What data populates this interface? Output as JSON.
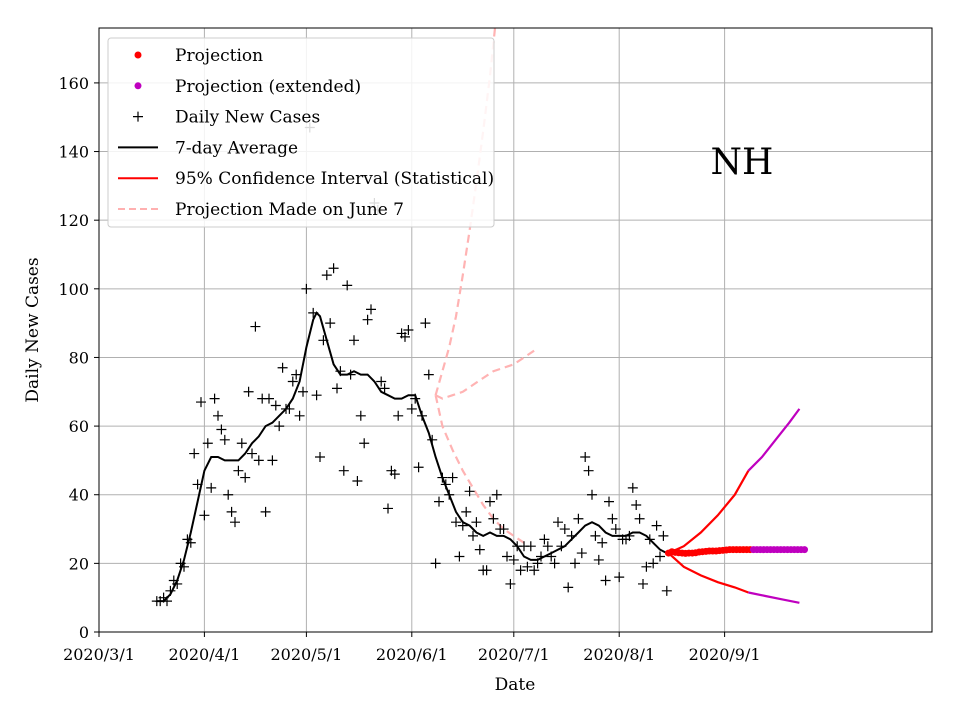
{
  "chart_data": {
    "type": "scatter",
    "ylabel": "Daily New Cases",
    "xlabel": "Date",
    "annotation": "NH",
    "ylim": [
      0,
      176
    ],
    "xlim_days": [
      0,
      245
    ],
    "x_ticks": [
      {
        "day": 0,
        "label": "2020/3/1"
      },
      {
        "day": 31,
        "label": "2020/4/1"
      },
      {
        "day": 61,
        "label": "2020/5/1"
      },
      {
        "day": 92,
        "label": "2020/6/1"
      },
      {
        "day": 122,
        "label": "2020/7/1"
      },
      {
        "day": 153,
        "label": "2020/8/1"
      },
      {
        "day": 184,
        "label": "2020/9/1"
      }
    ],
    "y_ticks": [
      0,
      20,
      40,
      60,
      80,
      100,
      120,
      140,
      160
    ],
    "grid": true,
    "legend_position": "top-left",
    "legend": [
      {
        "label": "Projection",
        "style": "dot",
        "color": "#ff0000"
      },
      {
        "label": "Projection (extended)",
        "style": "dot",
        "color": "#bf00bf"
      },
      {
        "label": "Daily New Cases",
        "style": "plus",
        "color": "#000000"
      },
      {
        "label": "7-day Average",
        "style": "line",
        "color": "#000000"
      },
      {
        "label": "95% Confidence Interval (Statistical)",
        "style": "line",
        "color": "#ff0000"
      },
      {
        "label": "Projection Made on June 7",
        "style": "dashed",
        "color": "#ffb0b0"
      }
    ],
    "daily_new_cases": [
      [
        17,
        9
      ],
      [
        18,
        9
      ],
      [
        19,
        10
      ],
      [
        20,
        9
      ],
      [
        21,
        12
      ],
      [
        22,
        15
      ],
      [
        23,
        14
      ],
      [
        24,
        20
      ],
      [
        25,
        19
      ],
      [
        26,
        27
      ],
      [
        27,
        26
      ],
      [
        28,
        52
      ],
      [
        29,
        43
      ],
      [
        30,
        67
      ],
      [
        31,
        34
      ],
      [
        32,
        55
      ],
      [
        33,
        42
      ],
      [
        34,
        68
      ],
      [
        35,
        63
      ],
      [
        36,
        59
      ],
      [
        37,
        56
      ],
      [
        38,
        40
      ],
      [
        39,
        35
      ],
      [
        40,
        32
      ],
      [
        41,
        47
      ],
      [
        42,
        55
      ],
      [
        43,
        45
      ],
      [
        44,
        70
      ],
      [
        45,
        52
      ],
      [
        46,
        89
      ],
      [
        47,
        50
      ],
      [
        48,
        68
      ],
      [
        49,
        35
      ],
      [
        50,
        68
      ],
      [
        51,
        50
      ],
      [
        52,
        66
      ],
      [
        53,
        60
      ],
      [
        54,
        77
      ],
      [
        55,
        65
      ],
      [
        56,
        65
      ],
      [
        57,
        73
      ],
      [
        58,
        75
      ],
      [
        59,
        63
      ],
      [
        60,
        70
      ],
      [
        61,
        100
      ],
      [
        62,
        147
      ],
      [
        63,
        93
      ],
      [
        64,
        69
      ],
      [
        65,
        51
      ],
      [
        66,
        85
      ],
      [
        67,
        104
      ],
      [
        68,
        90
      ],
      [
        69,
        106
      ],
      [
        70,
        71
      ],
      [
        71,
        76
      ],
      [
        72,
        47
      ],
      [
        73,
        101
      ],
      [
        74,
        75
      ],
      [
        75,
        85
      ],
      [
        76,
        44
      ],
      [
        77,
        63
      ],
      [
        78,
        55
      ],
      [
        79,
        91
      ],
      [
        80,
        94
      ],
      [
        81,
        125
      ],
      [
        82,
        123
      ],
      [
        83,
        73
      ],
      [
        84,
        71
      ],
      [
        85,
        36
      ],
      [
        86,
        47
      ],
      [
        87,
        46
      ],
      [
        88,
        63
      ],
      [
        89,
        87
      ],
      [
        90,
        86
      ],
      [
        91,
        88
      ],
      [
        92,
        65
      ],
      [
        93,
        68
      ],
      [
        94,
        48
      ],
      [
        95,
        63
      ],
      [
        96,
        90
      ],
      [
        97,
        75
      ],
      [
        98,
        56
      ],
      [
        99,
        20
      ],
      [
        100,
        38
      ],
      [
        101,
        45
      ],
      [
        102,
        43
      ],
      [
        103,
        40
      ],
      [
        104,
        45
      ],
      [
        105,
        32
      ],
      [
        106,
        22
      ],
      [
        107,
        31
      ],
      [
        108,
        35
      ],
      [
        109,
        41
      ],
      [
        110,
        28
      ],
      [
        111,
        32
      ],
      [
        112,
        24
      ],
      [
        113,
        18
      ],
      [
        114,
        18
      ],
      [
        115,
        38
      ],
      [
        116,
        33
      ],
      [
        117,
        40
      ],
      [
        118,
        30
      ],
      [
        119,
        30
      ],
      [
        120,
        22
      ],
      [
        121,
        14
      ],
      [
        122,
        21
      ],
      [
        123,
        25
      ],
      [
        124,
        18
      ],
      [
        125,
        25
      ],
      [
        126,
        19
      ],
      [
        127,
        25
      ],
      [
        128,
        18
      ],
      [
        129,
        20
      ],
      [
        130,
        22
      ],
      [
        131,
        27
      ],
      [
        132,
        25
      ],
      [
        133,
        22
      ],
      [
        134,
        20
      ],
      [
        135,
        32
      ],
      [
        136,
        25
      ],
      [
        137,
        30
      ],
      [
        138,
        13
      ],
      [
        139,
        28
      ],
      [
        140,
        20
      ],
      [
        141,
        33
      ],
      [
        142,
        23
      ],
      [
        143,
        51
      ],
      [
        144,
        47
      ],
      [
        145,
        40
      ],
      [
        146,
        28
      ],
      [
        147,
        21
      ],
      [
        148,
        26
      ],
      [
        149,
        15
      ],
      [
        150,
        38
      ],
      [
        151,
        33
      ],
      [
        152,
        30
      ],
      [
        153,
        16
      ],
      [
        154,
        27
      ],
      [
        155,
        27
      ],
      [
        156,
        28
      ],
      [
        157,
        42
      ],
      [
        158,
        37
      ],
      [
        159,
        33
      ],
      [
        160,
        14
      ],
      [
        161,
        19
      ],
      [
        162,
        27
      ],
      [
        163,
        20
      ],
      [
        164,
        31
      ],
      [
        165,
        22
      ],
      [
        166,
        28
      ],
      [
        167,
        12
      ]
    ],
    "seven_day_average": [
      [
        17,
        9
      ],
      [
        19,
        9
      ],
      [
        21,
        11
      ],
      [
        23,
        15
      ],
      [
        25,
        21
      ],
      [
        27,
        29
      ],
      [
        29,
        38
      ],
      [
        31,
        47
      ],
      [
        33,
        51
      ],
      [
        35,
        51
      ],
      [
        37,
        50
      ],
      [
        39,
        50
      ],
      [
        41,
        50
      ],
      [
        43,
        52
      ],
      [
        45,
        55
      ],
      [
        47,
        57
      ],
      [
        49,
        60
      ],
      [
        51,
        61
      ],
      [
        53,
        63
      ],
      [
        55,
        65
      ],
      [
        57,
        68
      ],
      [
        59,
        73
      ],
      [
        61,
        83
      ],
      [
        63,
        91
      ],
      [
        64,
        93
      ],
      [
        65,
        92
      ],
      [
        67,
        85
      ],
      [
        69,
        78
      ],
      [
        71,
        75
      ],
      [
        73,
        75
      ],
      [
        75,
        76
      ],
      [
        77,
        75
      ],
      [
        79,
        75
      ],
      [
        81,
        73
      ],
      [
        83,
        70
      ],
      [
        85,
        69
      ],
      [
        87,
        68
      ],
      [
        89,
        68
      ],
      [
        91,
        69
      ],
      [
        92,
        69
      ],
      [
        93,
        69
      ],
      [
        95,
        63
      ],
      [
        97,
        58
      ],
      [
        99,
        51
      ],
      [
        101,
        45
      ],
      [
        103,
        40
      ],
      [
        105,
        35
      ],
      [
        107,
        32
      ],
      [
        109,
        31
      ],
      [
        111,
        29
      ],
      [
        113,
        28
      ],
      [
        115,
        29
      ],
      [
        117,
        28
      ],
      [
        119,
        28
      ],
      [
        121,
        27
      ],
      [
        123,
        25
      ],
      [
        125,
        22
      ],
      [
        127,
        21
      ],
      [
        129,
        21
      ],
      [
        131,
        22
      ],
      [
        133,
        23
      ],
      [
        135,
        24
      ],
      [
        137,
        25
      ],
      [
        139,
        27
      ],
      [
        141,
        29
      ],
      [
        143,
        31
      ],
      [
        145,
        32
      ],
      [
        147,
        31
      ],
      [
        149,
        29
      ],
      [
        151,
        28
      ],
      [
        153,
        28
      ],
      [
        155,
        28
      ],
      [
        157,
        29
      ],
      [
        159,
        29
      ],
      [
        161,
        28
      ],
      [
        163,
        26
      ],
      [
        165,
        24
      ],
      [
        167,
        23
      ]
    ],
    "projection": [
      [
        167.5,
        23
      ],
      [
        168.5,
        23.4
      ],
      [
        169.5,
        23.2
      ],
      [
        170.5,
        23.1
      ],
      [
        171.5,
        23
      ],
      [
        172.5,
        22.9
      ],
      [
        173.5,
        23
      ],
      [
        174.5,
        23
      ],
      [
        175.5,
        23.1
      ],
      [
        176.5,
        23.3
      ],
      [
        177.5,
        23.4
      ],
      [
        178.5,
        23.5
      ],
      [
        179.5,
        23.6
      ],
      [
        180.5,
        23.6
      ],
      [
        181.5,
        23.6
      ],
      [
        182.5,
        23.7
      ],
      [
        183.5,
        23.8
      ],
      [
        184.5,
        23.9
      ],
      [
        185.5,
        24
      ],
      [
        186.5,
        24
      ],
      [
        187.5,
        24
      ],
      [
        188.5,
        24
      ],
      [
        189.5,
        24
      ],
      [
        190.5,
        24
      ],
      [
        191.5,
        24
      ]
    ],
    "projection_extended": [
      [
        192.5,
        24
      ],
      [
        193.5,
        24
      ],
      [
        194.5,
        24
      ],
      [
        195.5,
        24
      ],
      [
        196.5,
        24
      ],
      [
        197.5,
        24
      ],
      [
        198.5,
        24
      ],
      [
        199.5,
        24
      ],
      [
        200.5,
        24
      ],
      [
        201.5,
        24
      ],
      [
        202.5,
        24
      ],
      [
        203.5,
        24
      ],
      [
        204.5,
        24
      ],
      [
        205.5,
        24
      ],
      [
        206.5,
        24
      ],
      [
        207.5,
        24
      ]
    ],
    "ci_upper": [
      [
        167.5,
        23
      ],
      [
        172,
        25
      ],
      [
        177,
        29
      ],
      [
        182,
        34
      ],
      [
        187,
        40
      ],
      [
        191,
        47
      ]
    ],
    "ci_upper_extended": [
      [
        191,
        47
      ],
      [
        195,
        51
      ],
      [
        199,
        56
      ],
      [
        203,
        61
      ],
      [
        206,
        65
      ]
    ],
    "ci_lower": [
      [
        167.5,
        23
      ],
      [
        172,
        19
      ],
      [
        177,
        16.5
      ],
      [
        182,
        14.5
      ],
      [
        187,
        13
      ],
      [
        191,
        11.5
      ]
    ],
    "ci_lower_extended": [
      [
        191,
        11.5
      ],
      [
        196,
        10.5
      ],
      [
        201,
        9.5
      ],
      [
        206,
        8.5
      ]
    ],
    "june7_upper_ci": [
      [
        99,
        69
      ],
      [
        101,
        76
      ],
      [
        103,
        83
      ],
      [
        105,
        92
      ],
      [
        107,
        104
      ],
      [
        109,
        117
      ],
      [
        111,
        131
      ],
      [
        113,
        146
      ],
      [
        115,
        162
      ],
      [
        117,
        181
      ]
    ],
    "june7_mid_upper": [
      [
        99,
        69
      ],
      [
        101,
        68
      ],
      [
        104,
        69
      ],
      [
        107,
        70
      ],
      [
        110,
        72
      ],
      [
        113,
        74
      ],
      [
        116,
        76
      ],
      [
        119,
        77
      ],
      [
        122,
        78
      ],
      [
        125,
        80
      ],
      [
        128,
        82
      ]
    ],
    "june7_lower": [
      [
        99,
        69
      ],
      [
        101,
        60
      ],
      [
        104,
        53
      ],
      [
        107,
        47
      ],
      [
        110,
        42
      ],
      [
        113,
        37
      ],
      [
        116,
        33
      ],
      [
        119,
        30
      ],
      [
        122,
        28
      ],
      [
        125,
        26
      ]
    ]
  }
}
